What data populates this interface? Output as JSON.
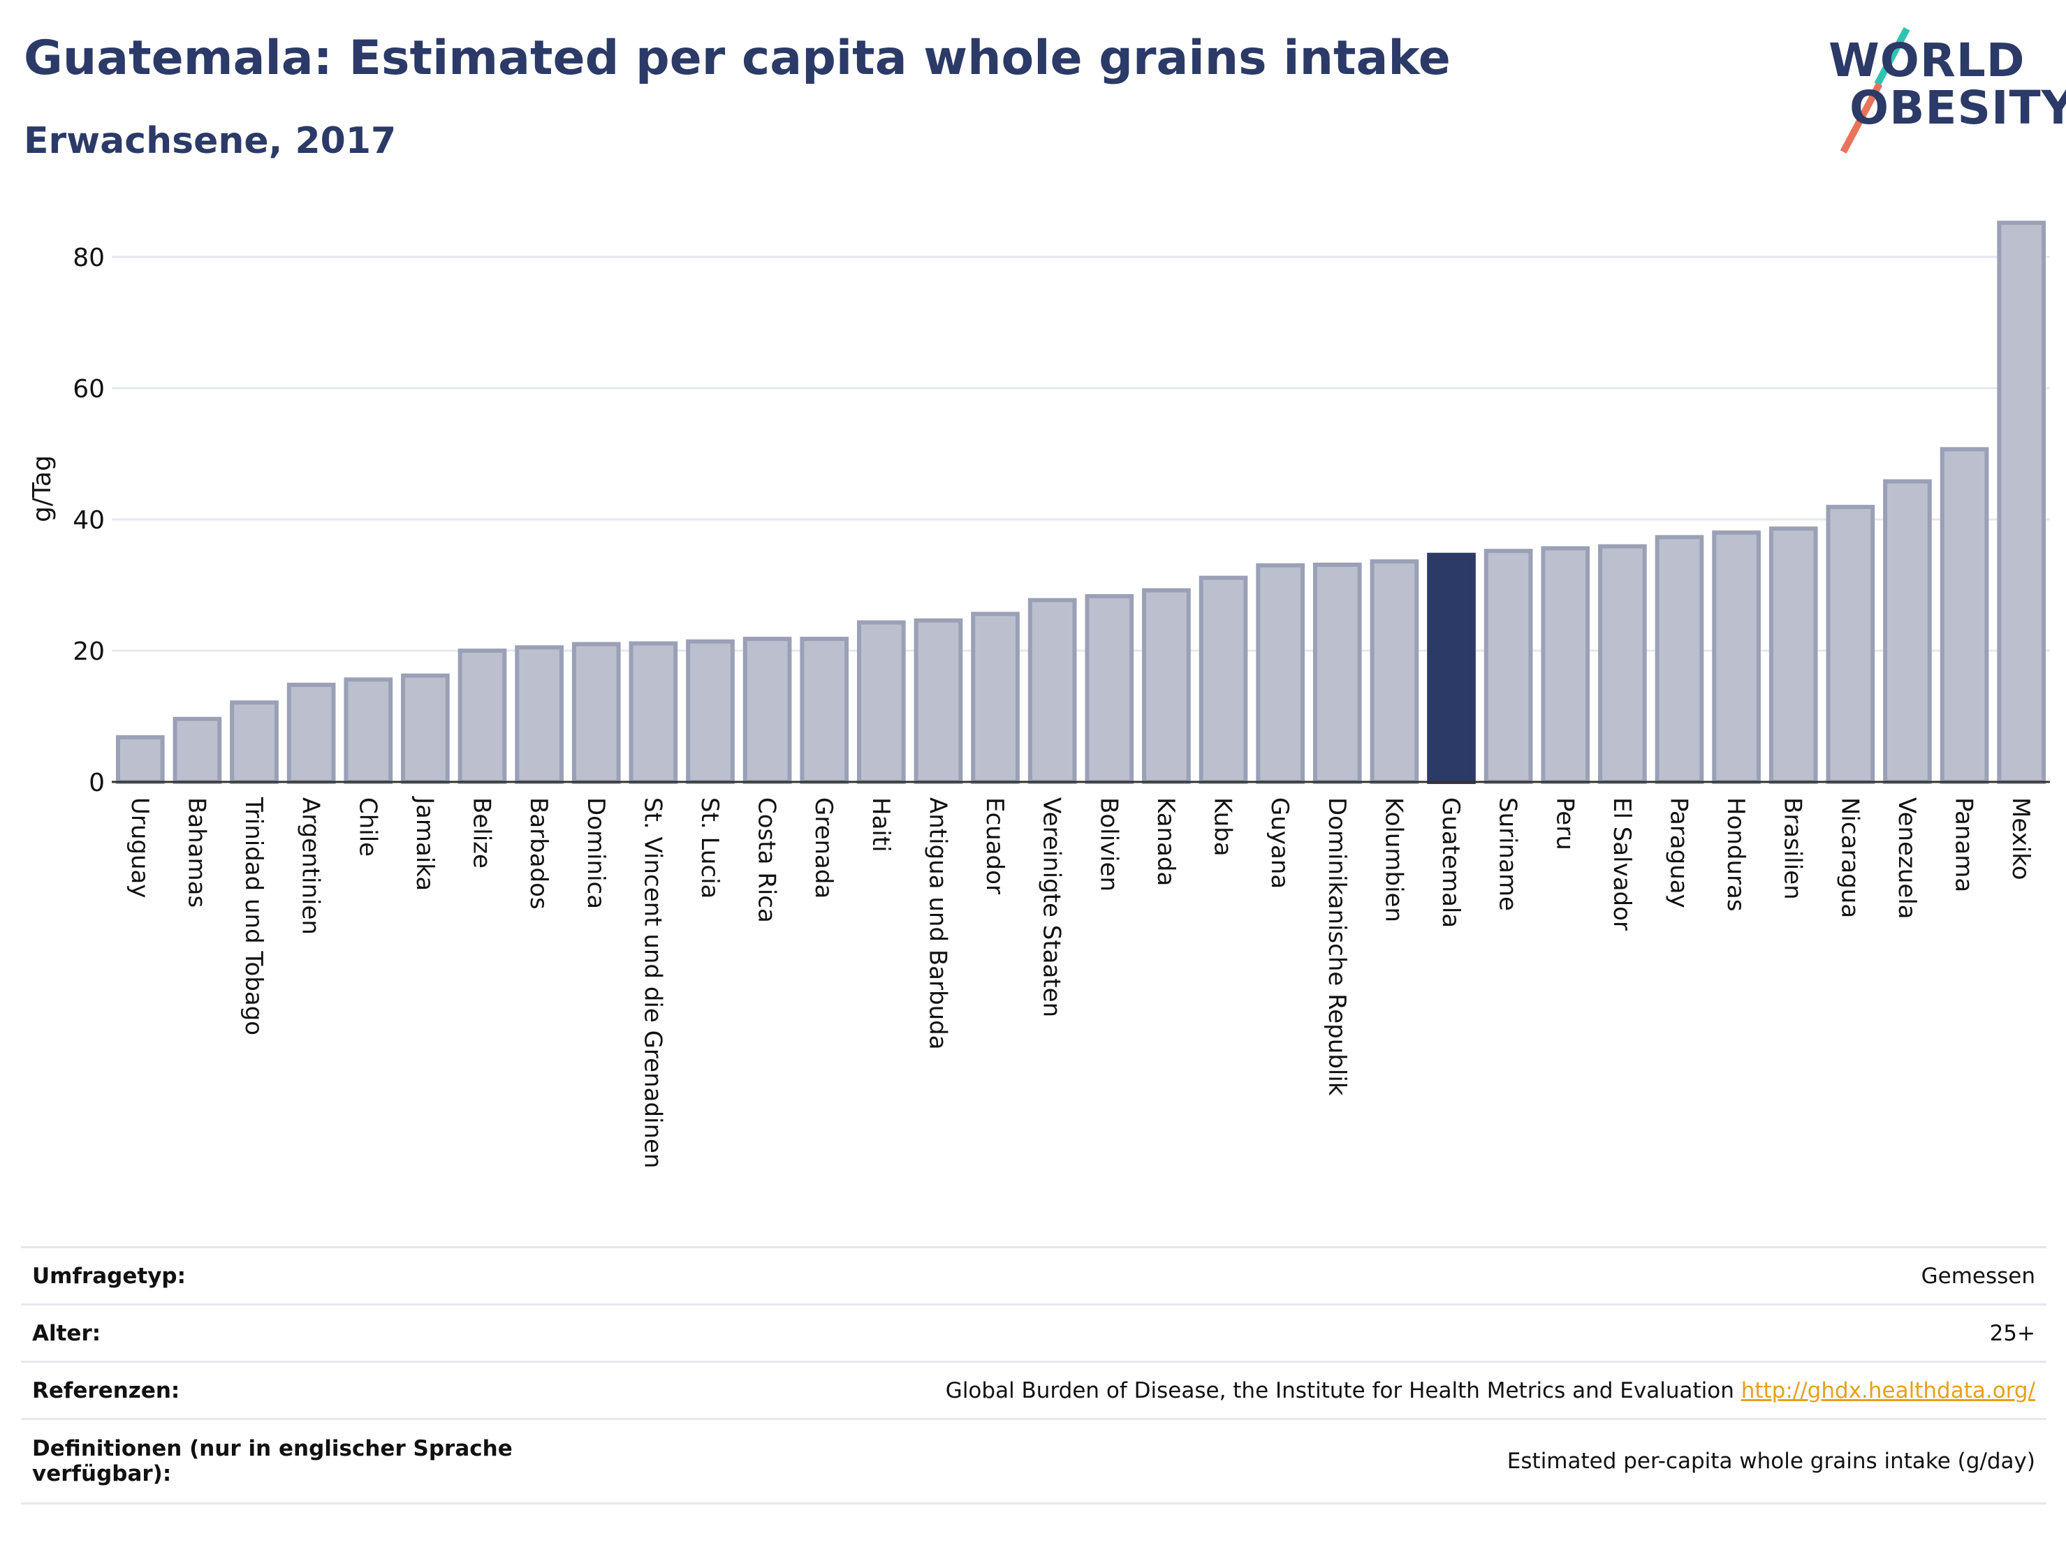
{
  "header": {
    "title": "Guatemala: Estimated per capita whole grains intake",
    "subtitle": "Erwachsene, 2017"
  },
  "logo": {
    "line1": "WORLD",
    "line2": "OBESITY"
  },
  "colors": {
    "title": "#2b3a67",
    "bar": "#bcc0ce",
    "bar_edge": "#9aa0b6",
    "highlight": "#2b3a67",
    "grid": "#e6e8f0",
    "link": "#e3a21a"
  },
  "chart_data": {
    "type": "bar",
    "ylabel": "g/Tag",
    "xlabel": "",
    "ylim": [
      0,
      88
    ],
    "yticks": [
      0,
      20,
      40,
      60,
      80
    ],
    "grid": true,
    "highlight": "Guatemala",
    "categories": [
      "Uruguay",
      "Bahamas",
      "Trinidad und Tobago",
      "Argentinien",
      "Chile",
      "Jamaika",
      "Belize",
      "Barbados",
      "Dominica",
      "St. Vincent und die Grenadinen",
      "St. Lucia",
      "Costa Rica",
      "Grenada",
      "Haiti",
      "Antigua und Barbuda",
      "Ecuador",
      "Vereinigte Staaten",
      "Bolivien",
      "Kanada",
      "Kuba",
      "Guyana",
      "Dominikanische Republik",
      "Kolumbien",
      "Guatemala",
      "Suriname",
      "Peru",
      "El Salvador",
      "Paraguay",
      "Honduras",
      "Brasilien",
      "Nicaragua",
      "Venezuela",
      "Panama",
      "Mexiko"
    ],
    "values": [
      6.8,
      9.6,
      12.1,
      14.8,
      15.6,
      16.2,
      20.0,
      20.5,
      21.0,
      21.1,
      21.4,
      21.8,
      21.8,
      24.3,
      24.6,
      25.6,
      27.7,
      28.3,
      29.2,
      31.1,
      33.0,
      33.1,
      33.6,
      34.6,
      35.2,
      35.6,
      35.9,
      37.3,
      38.0,
      38.6,
      41.9,
      45.8,
      50.7,
      85.2
    ]
  },
  "info": {
    "rows": [
      {
        "key": "Umfragetyp:",
        "value": "Gemessen"
      },
      {
        "key": "Alter:",
        "value": "25+"
      },
      {
        "key": "Referenzen:",
        "value": "Global Burden of Disease, the Institute for Health Metrics and Evaluation",
        "link": "http://ghdx.healthdata.org/"
      },
      {
        "key": "Definitionen (nur in englischer Sprache verfügbar):",
        "value": "Estimated per-capita whole grains intake (g/day)"
      }
    ]
  }
}
